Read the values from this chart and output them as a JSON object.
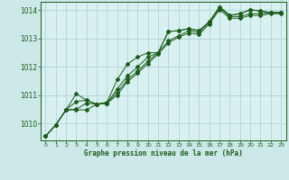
{
  "background_color": "#cce8e8",
  "plot_bg_color": "#d8f0f0",
  "grid_color": "#b8d8d8",
  "line_color": "#1a5c1a",
  "title": "Graphe pression niveau de la mer (hPa)",
  "xlim": [
    -0.5,
    23.5
  ],
  "ylim": [
    1009.4,
    1014.3
  ],
  "yticks": [
    1010,
    1011,
    1012,
    1013,
    1014
  ],
  "xticks": [
    0,
    1,
    2,
    3,
    4,
    5,
    6,
    7,
    8,
    9,
    10,
    11,
    12,
    13,
    14,
    15,
    16,
    17,
    18,
    19,
    20,
    21,
    22,
    23
  ],
  "series": [
    [
      1009.55,
      1009.95,
      1010.48,
      1011.05,
      1010.82,
      1010.68,
      1010.75,
      1011.55,
      1012.1,
      1012.35,
      1012.5,
      1012.5,
      1013.25,
      1013.28,
      1013.35,
      1013.28,
      1013.6,
      1014.12,
      1013.82,
      1013.88,
      1014.02,
      1013.97,
      1013.92,
      1013.92
    ],
    [
      1009.55,
      1009.95,
      1010.48,
      1010.5,
      1010.72,
      1010.68,
      1010.72,
      1011.1,
      1011.55,
      1011.85,
      1012.2,
      1012.5,
      1012.92,
      1013.1,
      1013.28,
      1013.22,
      1013.58,
      1014.08,
      1013.78,
      1013.78,
      1013.88,
      1013.88,
      1013.92,
      1013.92
    ],
    [
      1009.55,
      1009.95,
      1010.48,
      1010.78,
      1010.82,
      1010.68,
      1010.72,
      1011.22,
      1011.68,
      1012.0,
      1012.35,
      1012.5,
      1013.25,
      1013.28,
      1013.35,
      1013.28,
      1013.6,
      1014.12,
      1013.82,
      1013.88,
      1014.02,
      1013.97,
      1013.92,
      1013.92
    ],
    [
      1009.55,
      1009.95,
      1010.48,
      1010.48,
      1010.48,
      1010.68,
      1010.72,
      1011.0,
      1011.48,
      1011.78,
      1012.12,
      1012.45,
      1012.85,
      1013.05,
      1013.2,
      1013.15,
      1013.52,
      1014.02,
      1013.72,
      1013.72,
      1013.82,
      1013.82,
      1013.88,
      1013.88
    ]
  ]
}
